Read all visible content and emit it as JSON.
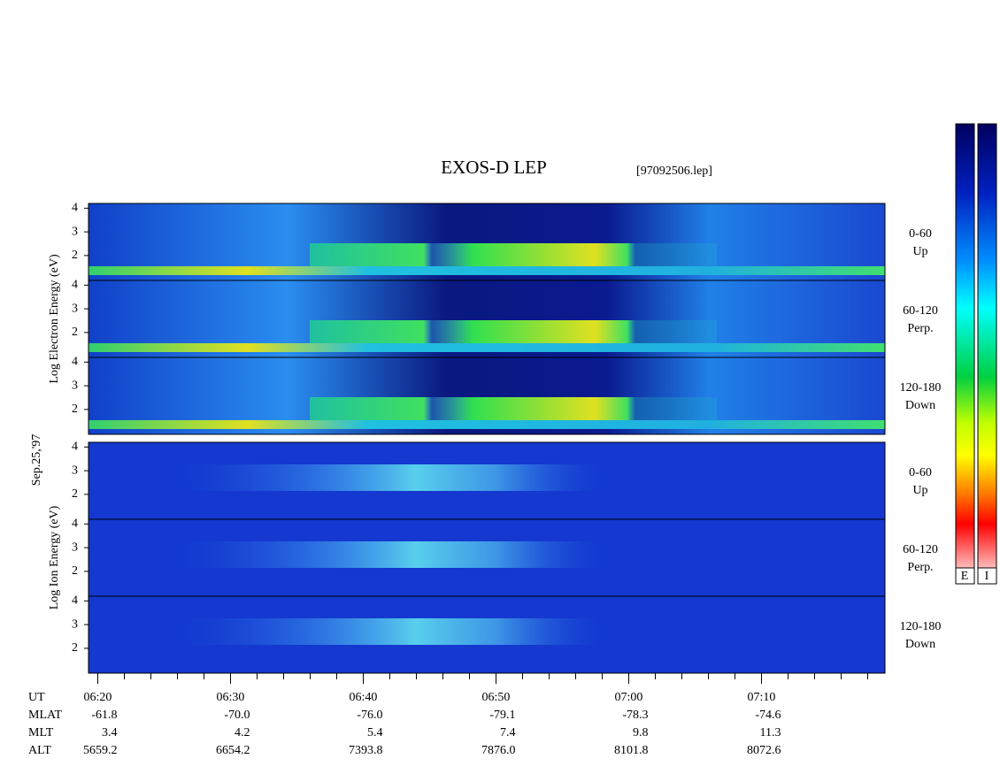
{
  "chart_data": {
    "type": "spectrogram",
    "title": "EXOS-D LEP",
    "file_label": "[97092506.lep]",
    "date_label": "Sep.25,'97",
    "groups": [
      {
        "label": "Log Electron Energy (eV)",
        "panels": [
          {
            "angle": "0-60",
            "direction": "Up"
          },
          {
            "angle": "60-120",
            "direction": "Perp."
          },
          {
            "angle": "120-180",
            "direction": "Down"
          }
        ]
      },
      {
        "label": "Log Ion Energy (eV)",
        "panels": [
          {
            "angle": "0-60",
            "direction": "Up"
          },
          {
            "angle": "60-120",
            "direction": "Perp."
          },
          {
            "angle": "120-180",
            "direction": "Down"
          }
        ]
      }
    ],
    "ylim": [
      0.95,
      4.2
    ],
    "yticks": [
      2,
      3,
      4
    ],
    "xlim": [
      379.3,
      439.3
    ],
    "xticks": [
      {
        "value": 380,
        "label": "06:20"
      },
      {
        "value": 390,
        "label": "06:30"
      },
      {
        "value": 400,
        "label": "06:40"
      },
      {
        "value": 410,
        "label": "06:50"
      },
      {
        "value": 420,
        "label": "07:00"
      },
      {
        "value": 430,
        "label": "07:10"
      }
    ],
    "minor_xticks": [
      382,
      384,
      386,
      388,
      392,
      394,
      396,
      398,
      402,
      404,
      406,
      408,
      412,
      414,
      416,
      418,
      422,
      424,
      426,
      428,
      432,
      434,
      436,
      438
    ],
    "ephemeris_time_label": "UT",
    "ephemeris": [
      {
        "label": "MLAT",
        "values": [
          "-61.8",
          "-70.0",
          "-76.0",
          "-79.1",
          "-78.3",
          "-74.6"
        ]
      },
      {
        "label": "MLT",
        "values": [
          "3.4",
          "4.2",
          "5.4",
          "7.4",
          "9.8",
          "11.3"
        ]
      },
      {
        "label": "ALT",
        "values": [
          "5659.2",
          "6654.2",
          "7393.8",
          "7876.0",
          "8101.8",
          "8072.6"
        ]
      }
    ],
    "colorbar_labels": [
      "E",
      "I"
    ]
  }
}
